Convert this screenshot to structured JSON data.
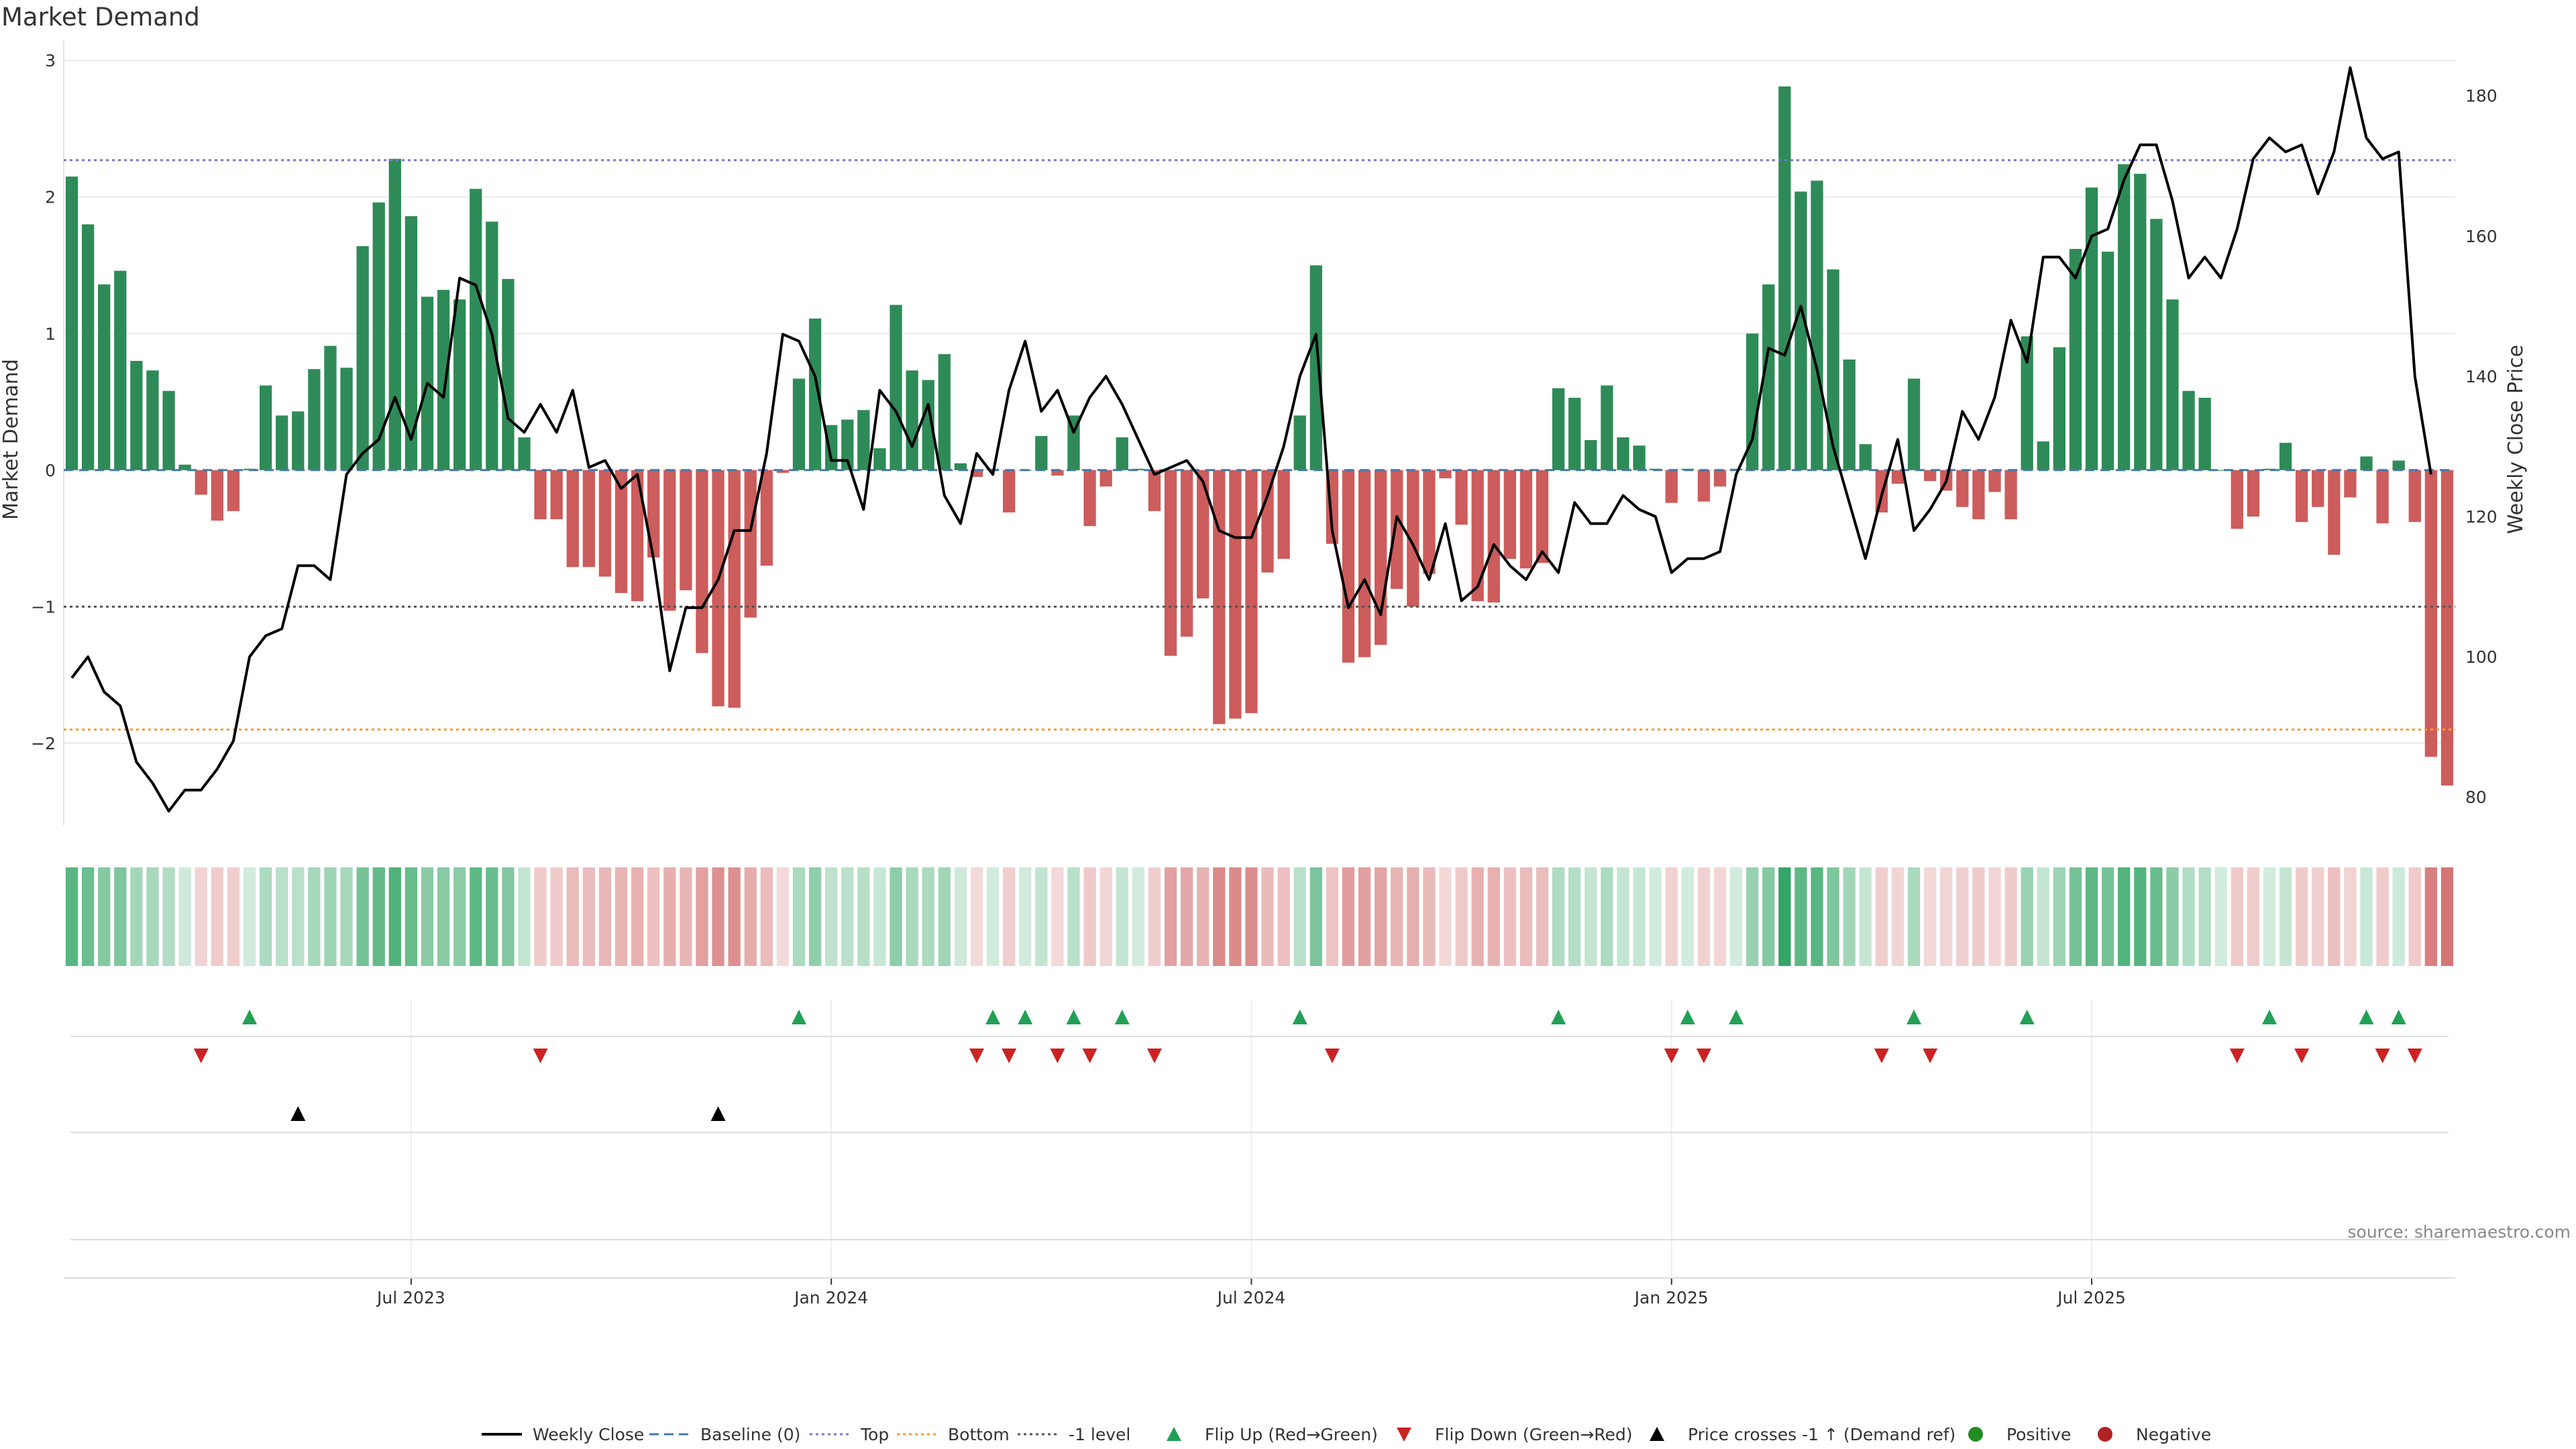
{
  "chart_data": {
    "type": "bar",
    "title": "Market Demand",
    "source": "source: sharemaestro.com",
    "ylabel_left": "Market Demand",
    "ylabel_right": "Weekly Close Price",
    "ylim_left": [
      -2.6,
      3.05
    ],
    "ylim_right": [
      76,
      186
    ],
    "yticks_left": [
      "3",
      "2",
      "1",
      "0",
      "−1",
      "−2"
    ],
    "yticks_right": [
      "180",
      "160",
      "140",
      "120",
      "100",
      "80"
    ],
    "xticks": [
      "Jul 2023",
      "Jan 2024",
      "Jul 2024",
      "Jan 2025",
      "Jul 2025"
    ],
    "reference_lines": {
      "top": 2.27,
      "bottom": -1.9,
      "minus_one": -1.0,
      "baseline": 0
    },
    "colors": {
      "positive": "#2e8b57",
      "negative": "#cd5c5c",
      "price": "#000000",
      "top": "#7777cc",
      "bottom": "#ff9933",
      "minus_one": "#555555",
      "flip_up": "#22a055",
      "flip_down": "#cc2222"
    },
    "demand": [
      2.15,
      1.8,
      1.36,
      1.46,
      0.8,
      0.73,
      0.58,
      0.04,
      -0.18,
      -0.37,
      -0.3,
      0.01,
      0.62,
      0.4,
      0.43,
      0.74,
      0.91,
      0.75,
      1.64,
      1.96,
      2.28,
      1.86,
      1.27,
      1.32,
      1.25,
      2.06,
      1.82,
      1.4,
      0.24,
      -0.36,
      -0.36,
      -0.71,
      -0.71,
      -0.78,
      -0.9,
      -0.96,
      -0.64,
      -1.03,
      -0.88,
      -1.34,
      -1.73,
      -1.74,
      -1.08,
      -0.7,
      -0.02,
      0.67,
      1.11,
      0.33,
      0.37,
      0.44,
      0.16,
      1.21,
      0.73,
      0.66,
      0.85,
      0.05,
      -0.05,
      0.01,
      -0.31,
      0.0,
      0.25,
      -0.04,
      0.4,
      -0.41,
      -0.12,
      0.24,
      0.01,
      -0.3,
      -1.36,
      -1.22,
      -0.94,
      -1.86,
      -1.82,
      -1.78,
      -0.75,
      -0.65,
      0.4,
      1.5,
      -0.54,
      -1.41,
      -1.37,
      -1.28,
      -0.87,
      -1.0,
      -0.76,
      -0.06,
      -0.4,
      -0.96,
      -0.97,
      -0.65,
      -0.72,
      -0.68,
      0.6,
      0.53,
      0.22,
      0.62,
      0.24,
      0.18,
      0.01,
      -0.24,
      0.01,
      -0.23,
      -0.12,
      0.01,
      1.0,
      1.36,
      2.81,
      2.04,
      2.12,
      1.47,
      0.81,
      0.19,
      -0.31,
      -0.1,
      0.67,
      -0.08,
      -0.15,
      -0.27,
      -0.36,
      -0.16,
      -0.36,
      0.98,
      0.21,
      0.9,
      1.62,
      2.07,
      1.6,
      2.24,
      2.17,
      1.84,
      1.25,
      0.58,
      0.53,
      0.0,
      -0.43,
      -0.34,
      0.01,
      0.2,
      -0.38,
      -0.27,
      -0.62,
      -0.2,
      0.1,
      -0.39,
      0.07,
      -0.38,
      -2.1,
      -2.31
    ],
    "weekly_close": [
      97,
      100,
      95,
      93,
      85,
      82,
      78,
      81,
      81,
      84,
      88,
      100,
      103,
      104,
      113,
      113,
      111,
      126,
      129,
      131,
      137,
      131,
      139,
      137,
      154,
      153,
      146,
      134,
      132,
      136,
      132,
      138,
      127,
      128,
      124,
      126,
      114,
      98,
      107,
      107,
      111,
      118,
      118,
      129,
      146,
      145,
      140,
      128,
      128,
      121,
      138,
      135,
      130,
      136,
      123,
      119,
      129,
      126,
      138,
      145,
      135,
      138,
      132,
      137,
      140,
      136,
      131,
      126,
      127,
      128,
      125,
      118,
      117,
      117,
      123,
      130,
      140,
      146,
      118,
      107,
      111,
      106,
      120,
      116,
      111,
      119,
      108,
      110,
      116,
      113,
      111,
      115,
      112,
      122,
      119,
      119,
      123,
      121,
      120,
      112,
      114,
      114,
      115,
      126,
      131,
      144,
      143,
      150,
      141,
      130,
      122,
      114,
      123,
      131,
      118,
      121,
      125,
      135,
      131,
      137,
      148,
      142,
      157,
      157,
      154,
      160,
      161,
      168,
      173,
      173,
      165,
      154,
      157,
      154,
      161,
      171,
      174,
      172,
      173,
      166,
      172,
      184,
      174,
      171,
      172,
      140,
      126
    ]
  },
  "legend": [
    {
      "label": "Weekly Close",
      "icon": "solid-line",
      "color": "#000000"
    },
    {
      "label": "Baseline (0)",
      "icon": "dashed-line",
      "color": "#4477aa"
    },
    {
      "label": "Top",
      "icon": "dotted-line",
      "color": "#7777cc"
    },
    {
      "label": "Bottom",
      "icon": "dotted-line",
      "color": "#ff9933"
    },
    {
      "label": "-1 level",
      "icon": "dotted-line",
      "color": "#555555"
    },
    {
      "label": "Flip Up (Red→Green)",
      "icon": "triangle-up",
      "color": "#22a055"
    },
    {
      "label": "Flip Down (Green→Red)",
      "icon": "triangle-down",
      "color": "#cc2222"
    },
    {
      "label": "Price crosses -1 ↑ (Demand ref)",
      "icon": "triangle-up",
      "color": "#000000"
    },
    {
      "label": "Positive",
      "icon": "circle",
      "color": "#228b22"
    },
    {
      "label": "Negative",
      "icon": "circle",
      "color": "#b22222"
    }
  ]
}
